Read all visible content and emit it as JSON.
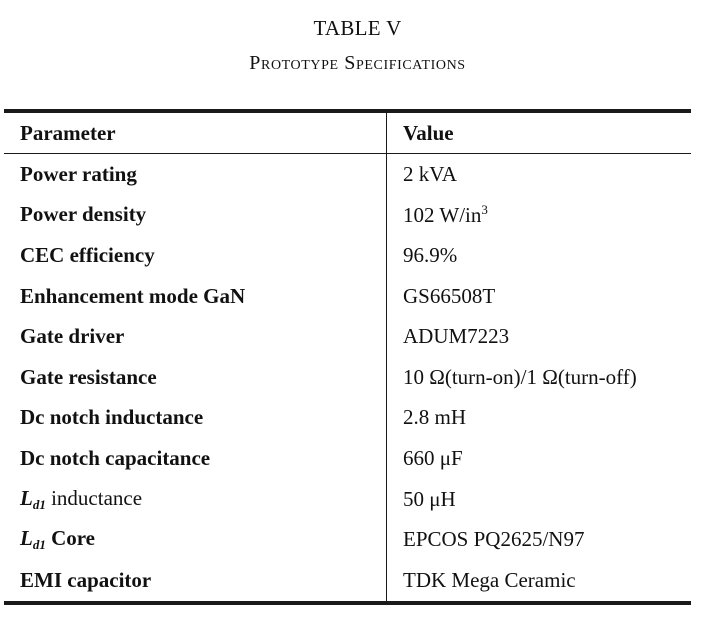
{
  "caption": {
    "number": "TABLE V",
    "title": "Prototype Specifications"
  },
  "table": {
    "headers": {
      "parameter": "Parameter",
      "value": "Value"
    },
    "rows": [
      {
        "parameter": "Power rating",
        "value": "2 kVA"
      },
      {
        "parameter": "Power density",
        "value": "102 W/in",
        "value_sup": "3"
      },
      {
        "parameter": "CEC efficiency",
        "value": "96.9%"
      },
      {
        "parameter": "Enhancement mode GaN",
        "value": "GS66508T"
      },
      {
        "parameter": "Gate driver",
        "value": "ADUM7223"
      },
      {
        "parameter": "Gate resistance",
        "value": "10 Ω(turn-on)/1 Ω(turn-off)"
      },
      {
        "parameter": "Dc notch inductance",
        "value": "2.8 mH"
      },
      {
        "parameter": "Dc notch capacitance",
        "value": "660 μF"
      },
      {
        "parameter_symbol": "L",
        "parameter_sub": "d1",
        "parameter": " inductance",
        "value": "50 μH"
      },
      {
        "parameter_symbol": "L",
        "parameter_sub": "d1",
        "parameter": " Core",
        "value": "EPCOS PQ2625/N97"
      },
      {
        "parameter": "EMI capacitor",
        "value": "TDK Mega Ceramic"
      }
    ]
  }
}
